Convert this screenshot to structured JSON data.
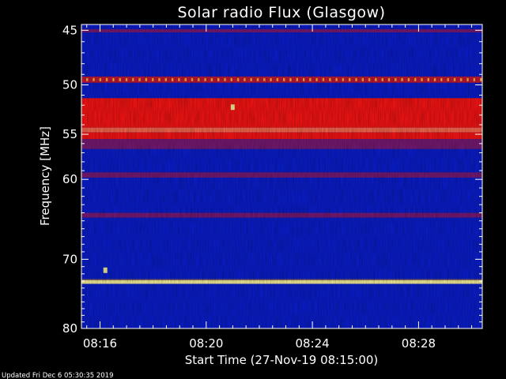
{
  "chart_data": {
    "type": "heatmap",
    "title": "Solar radio Flux (Glasgow)",
    "xlabel": "Start Time (27-Nov-19 08:15:00)",
    "ylabel": "Frequency [MHz]",
    "footer": "Updated Fri Dec  6 05:30:35 2019",
    "x_unit": "minutes after 08:00",
    "xlim": [
      15.3,
      30.4
    ],
    "ylim": [
      44.5,
      80.0
    ],
    "y_scale": "log",
    "x_ticks": [
      {
        "value": 16,
        "label": "08:16"
      },
      {
        "value": 20,
        "label": "08:20"
      },
      {
        "value": 24,
        "label": "08:24"
      },
      {
        "value": 28,
        "label": "08:28"
      }
    ],
    "y_ticks": [
      {
        "value": 45,
        "label": "45"
      },
      {
        "value": 50,
        "label": "50"
      },
      {
        "value": 55,
        "label": "55"
      },
      {
        "value": 60,
        "label": "60"
      },
      {
        "value": 70,
        "label": "70"
      },
      {
        "value": 80,
        "label": "80"
      }
    ],
    "colors": {
      "background": "#000000",
      "axis": "#ffffff",
      "low_intensity": "#0a1ed2",
      "high_intensity": "#ff1414",
      "peak_intensity": "#fff8a0"
    },
    "bands": [
      {
        "from_mhz": 44.5,
        "to_mhz": 44.9,
        "level": "low"
      },
      {
        "from_mhz": 44.9,
        "to_mhz": 45.2,
        "level": "medium"
      },
      {
        "from_mhz": 45.2,
        "to_mhz": 49.2,
        "level": "low"
      },
      {
        "from_mhz": 49.2,
        "to_mhz": 49.8,
        "level": "medium-high"
      },
      {
        "from_mhz": 49.8,
        "to_mhz": 51.3,
        "level": "low"
      },
      {
        "from_mhz": 51.3,
        "to_mhz": 54.3,
        "level": "high"
      },
      {
        "from_mhz": 54.3,
        "to_mhz": 54.8,
        "level": "very high"
      },
      {
        "from_mhz": 54.8,
        "to_mhz": 55.5,
        "level": "high"
      },
      {
        "from_mhz": 55.5,
        "to_mhz": 56.6,
        "level": "medium"
      },
      {
        "from_mhz": 56.6,
        "to_mhz": 59.2,
        "level": "low"
      },
      {
        "from_mhz": 59.2,
        "to_mhz": 59.8,
        "level": "medium"
      },
      {
        "from_mhz": 59.8,
        "to_mhz": 64.0,
        "level": "low"
      },
      {
        "from_mhz": 64.0,
        "to_mhz": 64.6,
        "level": "medium"
      },
      {
        "from_mhz": 64.6,
        "to_mhz": 72.9,
        "level": "low"
      },
      {
        "from_mhz": 72.9,
        "to_mhz": 73.4,
        "level": "peak"
      },
      {
        "from_mhz": 73.4,
        "to_mhz": 80.0,
        "level": "low"
      }
    ],
    "spots": [
      {
        "time_min": 16.2,
        "mhz": 71.5,
        "level": "peak"
      },
      {
        "time_min": 21.0,
        "mhz": 52.2,
        "level": "peak"
      }
    ],
    "grid": false,
    "legend": "none"
  }
}
